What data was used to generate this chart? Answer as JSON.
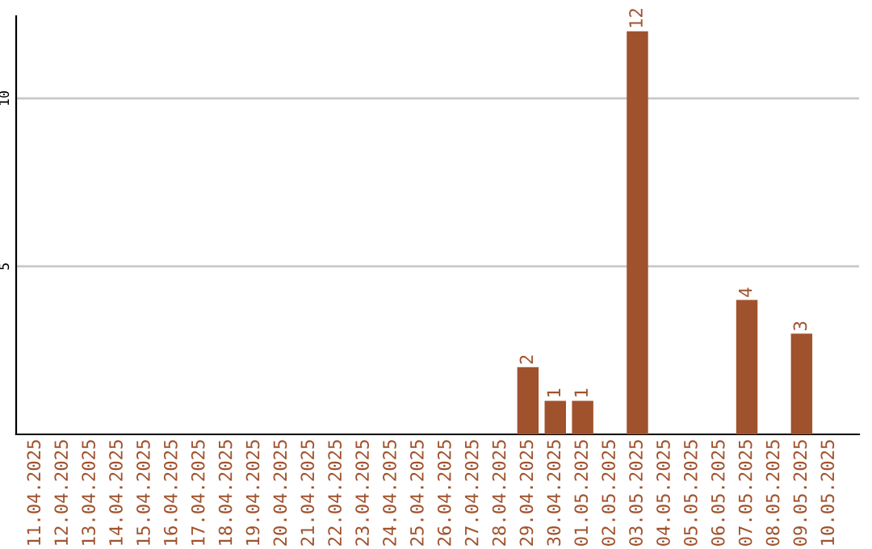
{
  "chart_data": {
    "type": "bar",
    "categories": [
      "11.04.2025",
      "12.04.2025",
      "13.04.2025",
      "14.04.2025",
      "15.04.2025",
      "16.04.2025",
      "17.04.2025",
      "18.04.2025",
      "19.04.2025",
      "20.04.2025",
      "21.04.2025",
      "22.04.2025",
      "23.04.2025",
      "24.04.2025",
      "25.04.2025",
      "26.04.2025",
      "27.04.2025",
      "28.04.2025",
      "29.04.2025",
      "30.04.2025",
      "01.05.2025",
      "02.05.2025",
      "03.05.2025",
      "04.05.2025",
      "05.05.2025",
      "06.05.2025",
      "07.05.2025",
      "08.05.2025",
      "09.05.2025",
      "10.05.2025"
    ],
    "values": [
      0,
      0,
      0,
      0,
      0,
      0,
      0,
      0,
      0,
      0,
      0,
      0,
      0,
      0,
      0,
      0,
      0,
      0,
      2,
      1,
      1,
      0,
      12,
      0,
      0,
      0,
      4,
      0,
      3,
      0
    ],
    "value_labels": [
      null,
      null,
      null,
      null,
      null,
      null,
      null,
      null,
      null,
      null,
      null,
      null,
      null,
      null,
      null,
      null,
      null,
      null,
      "2",
      "1",
      "1",
      null,
      "12",
      null,
      null,
      null,
      "4",
      null,
      "3",
      null
    ],
    "color": "#a0522d",
    "ylim": [
      0,
      12.45
    ],
    "yticks": [
      5,
      10
    ],
    "grid": "y"
  }
}
